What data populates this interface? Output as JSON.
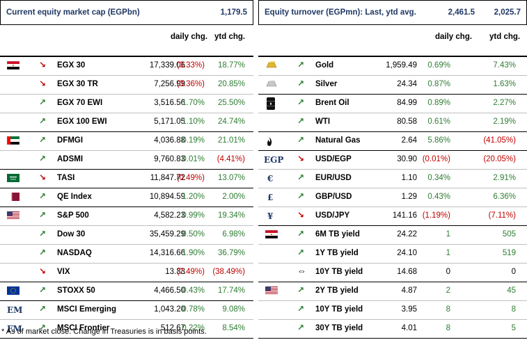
{
  "left": {
    "title": "Current equity market cap (EGPbn)",
    "value": "1,179.5",
    "col_daily": "daily chg.",
    "col_ytd": "ytd chg.",
    "rows": [
      {
        "icon": "egypt-flag-icon",
        "dir": "down",
        "name": "EGX 30",
        "value": "17,339.06",
        "daily": "(0.33%)",
        "ytd": "18.77%",
        "dsign": "neg",
        "ysign": "pos"
      },
      {
        "icon": "",
        "dir": "down",
        "name": "EGX 30 TR",
        "value": "7,256.99",
        "daily": "(0.36%)",
        "ytd": "20.85%",
        "dsign": "neg",
        "ysign": "pos"
      },
      {
        "icon": "",
        "dir": "up",
        "name": "EGX 70 EWI",
        "value": "3,516.56",
        "daily": "1.70%",
        "ytd": "25.50%",
        "dsign": "pos",
        "ysign": "pos"
      },
      {
        "icon": "",
        "dir": "up",
        "name": "EGX 100 EWI",
        "value": "5,171.05",
        "daily": "1.10%",
        "ytd": "24.74%",
        "dsign": "pos",
        "ysign": "pos",
        "end": true
      },
      {
        "icon": "uae-flag-icon",
        "dir": "up",
        "name": "DFMGI",
        "value": "4,036.88",
        "daily": "0.19%",
        "ytd": "21.01%",
        "dsign": "pos",
        "ysign": "pos"
      },
      {
        "icon": "",
        "dir": "up",
        "name": "ADSMI",
        "value": "9,760.83",
        "daily": "0.01%",
        "ytd": "(4.41%)",
        "dsign": "pos",
        "ysign": "neg",
        "end": true
      },
      {
        "icon": "saudi-flag-icon",
        "dir": "down",
        "name": "TASI",
        "value": "11,847.72",
        "daily": "(0.49%)",
        "ytd": "13.07%",
        "dsign": "neg",
        "ysign": "pos",
        "end": true
      },
      {
        "icon": "qatar-flag-icon",
        "dir": "up",
        "name": "QE Index",
        "value": "10,894.59",
        "daily": "1.20%",
        "ytd": "2.00%",
        "dsign": "pos",
        "ysign": "pos",
        "end": true
      },
      {
        "icon": "us-flag-icon",
        "dir": "up",
        "name": "S&P 500",
        "value": "4,582.23",
        "daily": "0.99%",
        "ytd": "19.34%",
        "dsign": "pos",
        "ysign": "pos"
      },
      {
        "icon": "",
        "dir": "up",
        "name": "Dow 30",
        "value": "35,459.29",
        "daily": "0.50%",
        "ytd": "6.98%",
        "dsign": "pos",
        "ysign": "pos"
      },
      {
        "icon": "",
        "dir": "up",
        "name": "NASDAQ",
        "value": "14,316.66",
        "daily": "1.90%",
        "ytd": "36.79%",
        "dsign": "pos",
        "ysign": "pos"
      },
      {
        "icon": "",
        "dir": "down",
        "name": "VIX",
        "value": "13.33",
        "daily": "(7.49%)",
        "ytd": "(38.49%)",
        "dsign": "neg",
        "ysign": "neg",
        "end": true
      },
      {
        "icon": "eu-flag-icon",
        "dir": "up",
        "name": "STOXX 50",
        "value": "4,466.50",
        "daily": "0.43%",
        "ytd": "17.74%",
        "dsign": "pos",
        "ysign": "pos",
        "end": true
      },
      {
        "icon": "EM",
        "dir": "up",
        "name": "MSCI Emerging",
        "value": "1,043.20",
        "daily": "0.78%",
        "ytd": "9.08%",
        "dsign": "pos",
        "ysign": "pos"
      },
      {
        "icon": "FM",
        "dir": "up",
        "name": "MSCI Frontier",
        "value": "512.67",
        "daily": "0.22%",
        "ytd": "8.54%",
        "dsign": "pos",
        "ysign": "pos",
        "end": true
      }
    ]
  },
  "right": {
    "title": "Equity turnover (EGPmn): Last, ytd avg.",
    "value_last": "2,461.5",
    "value_avg": "2,025.7",
    "col_daily": "daily chg.",
    "col_ytd": "ytd chg.",
    "rows": [
      {
        "icon": "gold-icon",
        "dir": "up",
        "name": "Gold",
        "value": "1,959.49",
        "daily": "0.69%",
        "ytd": "7.43%",
        "dsign": "pos",
        "ysign": "pos"
      },
      {
        "icon": "silver-icon",
        "dir": "up",
        "name": "Silver",
        "value": "24.34",
        "daily": "0.87%",
        "ytd": "1.63%",
        "dsign": "pos",
        "ysign": "pos",
        "end": true
      },
      {
        "icon": "oil-barrel-icon",
        "dir": "up",
        "name": "Brent Oil",
        "value": "84.99",
        "daily": "0.89%",
        "ytd": "2.27%",
        "dsign": "pos",
        "ysign": "pos"
      },
      {
        "icon": "",
        "dir": "up",
        "name": "WTI",
        "value": "80.58",
        "daily": "0.61%",
        "ytd": "2.19%",
        "dsign": "pos",
        "ysign": "pos",
        "end": true
      },
      {
        "icon": "flame-icon",
        "dir": "up",
        "name": "Natural Gas",
        "value": "2.64",
        "daily": "5.86%",
        "ytd": "(41.05%)",
        "dsign": "pos",
        "ysign": "neg",
        "end": true
      },
      {
        "icon": "EGP",
        "dir": "down",
        "name": "USD/EGP",
        "value": "30.90",
        "daily": "(0.01%)",
        "ytd": "(20.05%)",
        "dsign": "neg",
        "ysign": "neg"
      },
      {
        "icon": "€",
        "dir": "up",
        "name": "EUR/USD",
        "value": "1.10",
        "daily": "0.34%",
        "ytd": "2.91%",
        "dsign": "pos",
        "ysign": "pos"
      },
      {
        "icon": "£",
        "dir": "up",
        "name": "GBP/USD",
        "value": "1.29",
        "daily": "0.43%",
        "ytd": "6.36%",
        "dsign": "pos",
        "ysign": "pos"
      },
      {
        "icon": "¥",
        "dir": "down",
        "name": "USD/JPY",
        "value": "141.16",
        "daily": "(1.19%)",
        "ytd": "(7.11%)",
        "dsign": "neg",
        "ysign": "neg",
        "end": true
      },
      {
        "icon": "egypt-flag-icon",
        "dir": "up",
        "name": "6M TB yield",
        "value": "24.22",
        "daily": "1",
        "ytd": "505",
        "dsign": "pos",
        "ysign": "pos"
      },
      {
        "icon": "",
        "dir": "up",
        "name": "1Y TB yield",
        "value": "24.10",
        "daily": "1",
        "ytd": "519",
        "dsign": "pos",
        "ysign": "pos"
      },
      {
        "icon": "",
        "dir": "flat",
        "name": "10Y TB yield",
        "value": "14.68",
        "daily": "0",
        "ytd": "0",
        "dsign": "neu",
        "ysign": "neu",
        "end": true
      },
      {
        "icon": "us-flag-icon",
        "dir": "up",
        "name": "2Y TB yield",
        "value": "4.87",
        "daily": "2",
        "ytd": "45",
        "dsign": "pos",
        "ysign": "pos"
      },
      {
        "icon": "",
        "dir": "up",
        "name": "10Y TB yield",
        "value": "3.95",
        "daily": "8",
        "ytd": "8",
        "dsign": "pos",
        "ysign": "pos"
      },
      {
        "icon": "",
        "dir": "up",
        "name": "30Y TB yield",
        "value": "4.01",
        "daily": "8",
        "ytd": "5",
        "dsign": "pos",
        "ysign": "pos",
        "end": true
      }
    ]
  },
  "footnote": "* As of market close. Change in Treasuries is in basis points."
}
